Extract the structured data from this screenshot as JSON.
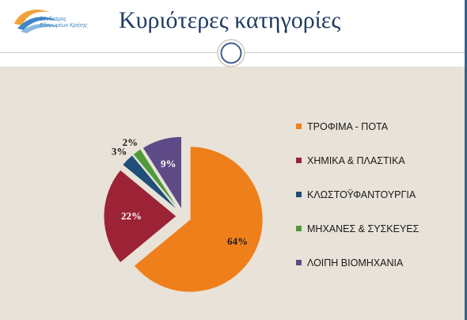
{
  "slide": {
    "title": "Κυριότερες κατηγορίες",
    "logo_text": "Σύνδεσμος\nΕξαγωγέων Κρήτης",
    "colors": {
      "panel": "#e8e2d8",
      "title": "#1f3b63"
    }
  },
  "chart_data": {
    "type": "pie",
    "title": "",
    "exploded": true,
    "legend_position": "right",
    "slices": [
      {
        "label": "ΤΡΟΦΙΜΑ - ΠΟΤΑ",
        "value": 64,
        "display": "64%",
        "color": "#ef7f1a"
      },
      {
        "label": "ΧΗΜΙΚΑ & ΠΛΑΣΤΙΚΑ",
        "value": 22,
        "display": "22%",
        "color": "#9b2335"
      },
      {
        "label": "ΚΛΩΣΤΟΫΦΑΝΤΟΥΡΓΙΑ",
        "value": 3,
        "display": "3%",
        "color": "#1f4e79"
      },
      {
        "label": "ΜΗΧΑΝΕΣ & ΣΥΣΚΕΥΕΣ",
        "value": 2,
        "display": "2%",
        "color": "#4f9a3a"
      },
      {
        "label": "ΛΟΙΠΗ ΒΙΟΜΗΧΑΝΙΑ",
        "value": 9,
        "display": "9%",
        "color": "#5e4a86"
      }
    ]
  }
}
